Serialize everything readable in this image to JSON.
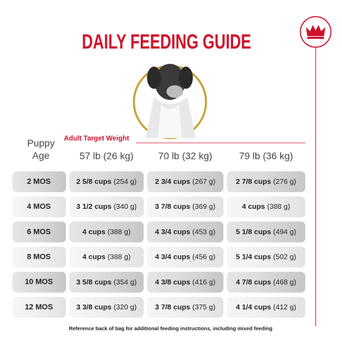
{
  "header": {
    "title": "DAILY FEEDING GUIDE"
  },
  "table": {
    "age_header": "Puppy Age",
    "weight_caption": "Adult Target Weight",
    "columns": [
      "57 lb (26 kg)",
      "70 lb (32 kg)",
      "79 lb (36 kg)"
    ],
    "rows": [
      {
        "age": "2 MOS",
        "cells": [
          {
            "cups": "2 5/8 cups",
            "grams": "(254 g)"
          },
          {
            "cups": "2 3/4 cups",
            "grams": "(267 g)"
          },
          {
            "cups": "2 7/8 cups",
            "grams": "(276 g)"
          }
        ]
      },
      {
        "age": "4 MOS",
        "cells": [
          {
            "cups": "3 1/2 cups",
            "grams": "(340 g)"
          },
          {
            "cups": "3 7/8 cups",
            "grams": "(369 g)"
          },
          {
            "cups": "4 cups",
            "grams": "(388 g)"
          }
        ]
      },
      {
        "age": "6 MOS",
        "cells": [
          {
            "cups": "4 cups",
            "grams": "(388 g)"
          },
          {
            "cups": "4 3/4 cups",
            "grams": "(453 g)"
          },
          {
            "cups": "5 1/8 cups",
            "grams": "(494 g)"
          }
        ]
      },
      {
        "age": "8 MOS",
        "cells": [
          {
            "cups": "4 cups",
            "grams": "(388 g)"
          },
          {
            "cups": "4 3/4 cups",
            "grams": "(456 g)"
          },
          {
            "cups": "5 1/4 cups",
            "grams": "(502 g)"
          }
        ]
      },
      {
        "age": "10 MOS",
        "cells": [
          {
            "cups": "3 5/8 cups",
            "grams": "(354 g)"
          },
          {
            "cups": "4 3/8 cups",
            "grams": "(416 g)"
          },
          {
            "cups": "4 7/8 cups",
            "grams": "(468 g)"
          }
        ]
      },
      {
        "age": "12 MOS",
        "cells": [
          {
            "cups": "3 3/8 cups",
            "grams": "(320 g)"
          },
          {
            "cups": "3 7/8 cups",
            "grams": "(375 g)"
          },
          {
            "cups": "4 1/4 cups",
            "grams": "(412 g)"
          }
        ]
      }
    ]
  },
  "footnote": "Reference back of bag for additional feeding instructions, including mixed feeding"
}
